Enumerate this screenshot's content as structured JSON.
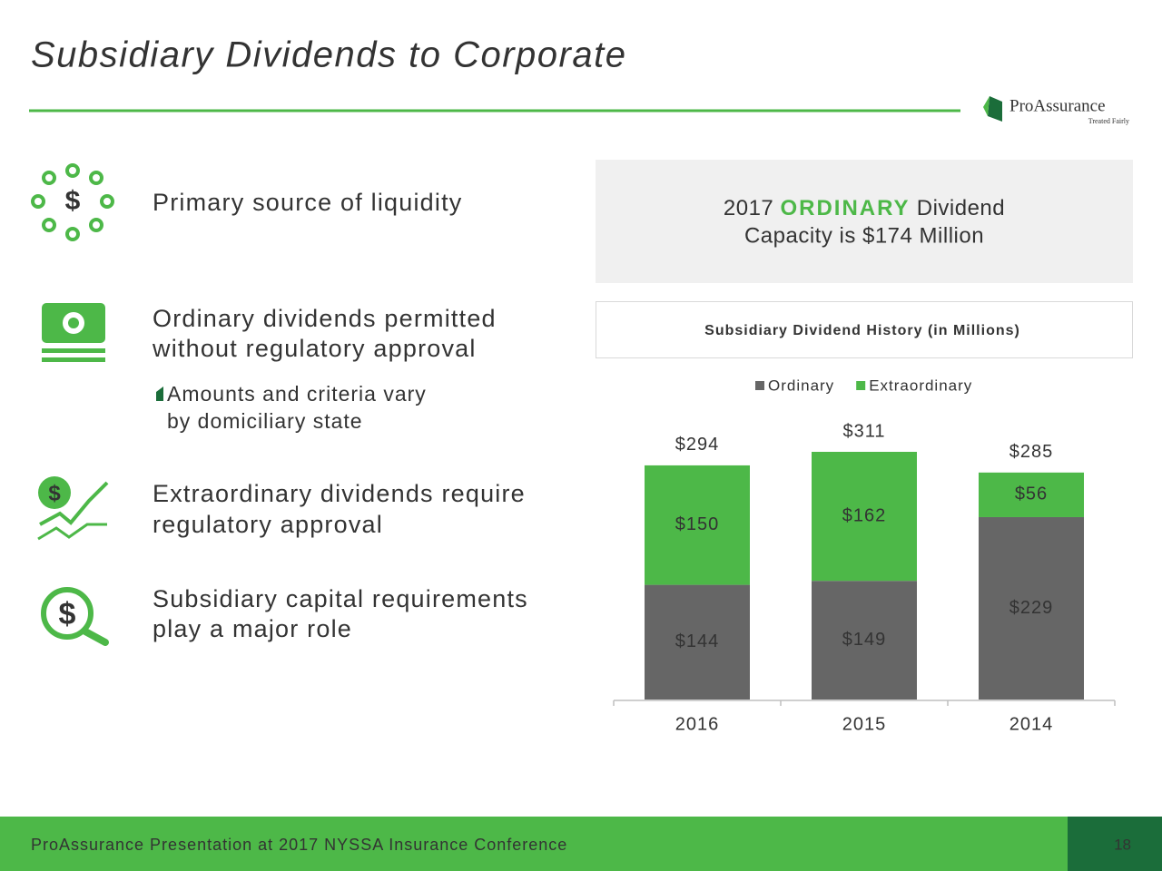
{
  "title": "Subsidiary Dividends to Corporate",
  "logo": {
    "name": "ProAssurance",
    "tagline": "Treated Fairly"
  },
  "points": [
    {
      "lines": [
        "Primary source of liquidity"
      ]
    },
    {
      "lines": [
        "Ordinary dividends permitted",
        "without regulatory approval"
      ],
      "sub_lines": [
        "Amounts and criteria vary",
        "by domiciliary state"
      ]
    },
    {
      "lines": [
        "Extraordinary dividends require",
        "regulatory approval"
      ]
    },
    {
      "lines": [
        "Subsidiary capital requirements",
        "play a major role"
      ]
    }
  ],
  "callout": {
    "lead": "2017",
    "highlight": "ORDINARY",
    "tail": "Dividend",
    "line2": "Capacity is $174 Million"
  },
  "footer": {
    "text": "ProAssurance Presentation at 2017 NYSSA Insurance Conference",
    "page": "18"
  },
  "chart_data": {
    "type": "stacked_bar",
    "title": "Subsidiary Dividend History (in Millions)",
    "categories": [
      "2016",
      "2015",
      "2014"
    ],
    "series": [
      {
        "name": "Ordinary",
        "color": "#666666",
        "values": [
          144,
          149,
          229
        ],
        "value_labels": [
          "$144",
          "$149",
          "$229"
        ]
      },
      {
        "name": "Extraordinary",
        "color": "#4db848",
        "values": [
          150,
          162,
          56
        ],
        "value_labels": [
          "$150",
          "$162",
          "$56"
        ]
      }
    ],
    "totals": [
      294,
      311,
      285
    ],
    "total_labels": [
      "$294",
      "$311",
      "$285"
    ],
    "legend": "top"
  }
}
